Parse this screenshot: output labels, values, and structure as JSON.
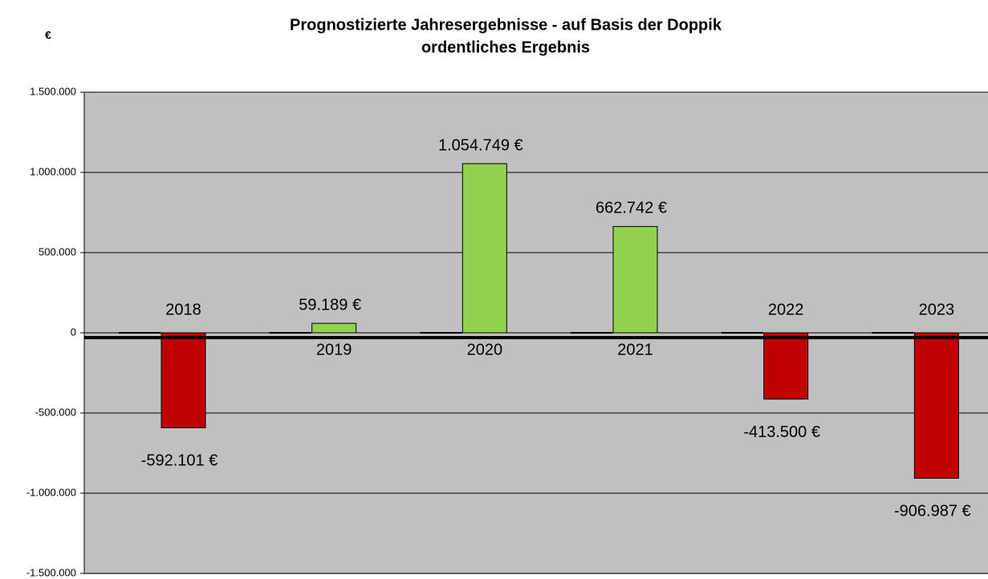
{
  "chart_data": {
    "type": "bar",
    "title": "Prognostizierte Jahresergebnisse - auf Basis der Doppik",
    "subtitle": "ordentliches Ergebnis",
    "y_label": "€",
    "categories": [
      "2018",
      "2019",
      "2020",
      "2021",
      "2022",
      "2023"
    ],
    "values": [
      -592101,
      59189,
      1054749,
      662742,
      -413500,
      -906987
    ],
    "value_labels": [
      "-592.101 €",
      "59.189 €",
      "1.054.749 €",
      "662.742 €",
      "-413.500 €",
      "-906.987 €"
    ],
    "colors": [
      "#c00000",
      "#92d050",
      "#92d050",
      "#92d050",
      "#c00000",
      "#c00000"
    ],
    "ylim": [
      -1500000,
      1500000
    ],
    "yticks": [
      {
        "value": -1500000,
        "label": "-1.500.000"
      },
      {
        "value": -1000000,
        "label": "-1.000.000"
      },
      {
        "value": -500000,
        "label": "-500.000"
      },
      0,
      {
        "value": 500000,
        "label": "500.000"
      },
      {
        "value": 1000000,
        "label": "1.000.000"
      },
      {
        "value": 1500000,
        "label": "1.500.000"
      }
    ],
    "grid": true
  }
}
